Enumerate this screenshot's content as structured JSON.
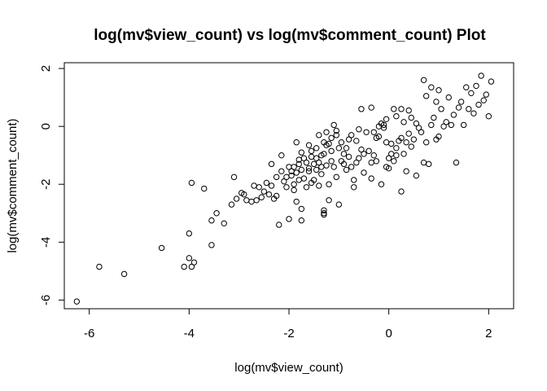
{
  "chart_data": {
    "type": "scatter",
    "title": "log(mv$view_count) vs log(mv$comment_count) Plot",
    "xlabel": "log(mv$view_count)",
    "ylabel": "log(mv$comment_count)",
    "xlim": [
      -6.5,
      2.5
    ],
    "ylim": [
      -6.3,
      2.2
    ],
    "x_ticks": [
      -6,
      -4,
      -2,
      0,
      2
    ],
    "y_ticks": [
      -6,
      -4,
      -2,
      0,
      2
    ],
    "x_tick_labels": [
      "-6",
      "-4",
      "-2",
      "0",
      "2"
    ],
    "y_tick_labels": [
      "-6",
      "-4",
      "-2",
      "0",
      "2"
    ],
    "grid": false,
    "marker": "open-circle",
    "points": [
      [
        -6.25,
        -6.05
      ],
      [
        -5.8,
        -4.85
      ],
      [
        -5.3,
        -5.1
      ],
      [
        -4.55,
        -4.2
      ],
      [
        -4.1,
        -4.85
      ],
      [
        -4.0,
        -4.55
      ],
      [
        -4.0,
        -3.7
      ],
      [
        -3.95,
        -4.85
      ],
      [
        -3.9,
        -4.7
      ],
      [
        -3.95,
        -1.95
      ],
      [
        -3.7,
        -2.15
      ],
      [
        -3.55,
        -4.1
      ],
      [
        -3.55,
        -3.25
      ],
      [
        -3.45,
        -3.0
      ],
      [
        -3.3,
        -3.35
      ],
      [
        -3.15,
        -2.7
      ],
      [
        -3.1,
        -1.75
      ],
      [
        -3.05,
        -2.5
      ],
      [
        -2.9,
        -2.35
      ],
      [
        -2.85,
        -2.55
      ],
      [
        -2.75,
        -2.6
      ],
      [
        -2.65,
        -2.55
      ],
      [
        -2.6,
        -2.1
      ],
      [
        -2.55,
        -2.45
      ],
      [
        -2.45,
        -1.95
      ],
      [
        -2.4,
        -2.35
      ],
      [
        -2.35,
        -1.3
      ],
      [
        -2.3,
        -2.5
      ],
      [
        -2.25,
        -2.4
      ],
      [
        -2.2,
        -3.4
      ],
      [
        -2.15,
        -1.0
      ],
      [
        -2.05,
        -2.1
      ],
      [
        -2.0,
        -1.4
      ],
      [
        -1.95,
        -1.7
      ],
      [
        -1.9,
        -2.0
      ],
      [
        -1.85,
        -0.55
      ],
      [
        -1.85,
        -2.6
      ],
      [
        -1.8,
        -1.85
      ],
      [
        -1.75,
        -3.25
      ],
      [
        -1.75,
        -2.85
      ],
      [
        -1.65,
        -2.1
      ],
      [
        -1.6,
        -1.55
      ],
      [
        -1.55,
        -0.85
      ],
      [
        -1.5,
        -1.85
      ],
      [
        -1.45,
        -1.1
      ],
      [
        -1.4,
        -0.3
      ],
      [
        -1.35,
        -1.65
      ],
      [
        -1.35,
        -1.4
      ],
      [
        -1.3,
        -0.95
      ],
      [
        -1.3,
        -2.9
      ],
      [
        -1.3,
        -3.05
      ],
      [
        -1.3,
        -3.0
      ],
      [
        -1.25,
        -0.65
      ],
      [
        -1.2,
        -2.0
      ],
      [
        -1.2,
        -2.55
      ],
      [
        -1.15,
        -1.2
      ],
      [
        -1.1,
        -1.4
      ],
      [
        -1.05,
        -1.75
      ],
      [
        -1.0,
        -0.75
      ],
      [
        -1.0,
        -2.7
      ],
      [
        -0.95,
        -1.2
      ],
      [
        -0.9,
        -1.3
      ],
      [
        -0.85,
        -1.5
      ],
      [
        -0.8,
        -1.05
      ],
      [
        -0.75,
        -1.4
      ],
      [
        -0.7,
        -2.1
      ],
      [
        -0.7,
        -1.85
      ],
      [
        -0.65,
        -1.25
      ],
      [
        -0.6,
        -1.1
      ],
      [
        -0.55,
        -0.8
      ],
      [
        -0.5,
        -1.6
      ],
      [
        -0.5,
        -0.95
      ],
      [
        -0.45,
        -0.2
      ],
      [
        -0.4,
        -0.85
      ],
      [
        -0.35,
        -1.25
      ],
      [
        -0.35,
        -1.8
      ],
      [
        -0.3,
        -0.2
      ],
      [
        -0.3,
        -1.0
      ],
      [
        -0.25,
        -1.2
      ],
      [
        -0.2,
        -0.35
      ],
      [
        -0.15,
        -2.0
      ],
      [
        -0.1,
        -0.05
      ],
      [
        -0.1,
        0.05
      ],
      [
        -0.05,
        -1.4
      ],
      [
        -0.05,
        -0.55
      ],
      [
        0.0,
        -1.45
      ],
      [
        0.0,
        -1.1
      ],
      [
        0.05,
        -0.6
      ],
      [
        0.05,
        -0.95
      ],
      [
        0.1,
        -1.2
      ],
      [
        0.15,
        -1.0
      ],
      [
        0.15,
        -0.75
      ],
      [
        0.2,
        -0.5
      ],
      [
        0.25,
        -0.4
      ],
      [
        0.25,
        -2.25
      ],
      [
        0.3,
        -0.95
      ],
      [
        0.35,
        -0.55
      ],
      [
        0.35,
        -1.55
      ],
      [
        0.4,
        -0.25
      ],
      [
        0.45,
        -0.7
      ],
      [
        0.5,
        -0.45
      ],
      [
        0.55,
        -1.7
      ],
      [
        0.6,
        -0.05
      ],
      [
        0.65,
        -0.2
      ],
      [
        0.7,
        -1.25
      ],
      [
        0.75,
        -0.55
      ],
      [
        0.8,
        -1.3
      ],
      [
        0.85,
        0.05
      ],
      [
        0.9,
        0.3
      ],
      [
        0.95,
        -0.45
      ],
      [
        1.0,
        -0.35
      ],
      [
        1.05,
        0.6
      ],
      [
        1.1,
        0.0
      ],
      [
        1.15,
        0.15
      ],
      [
        1.2,
        1.0
      ],
      [
        1.25,
        0.05
      ],
      [
        1.3,
        0.4
      ],
      [
        1.35,
        -1.25
      ],
      [
        1.4,
        0.65
      ],
      [
        1.45,
        0.85
      ],
      [
        1.5,
        0.05
      ],
      [
        1.55,
        1.35
      ],
      [
        1.6,
        0.6
      ],
      [
        1.65,
        1.15
      ],
      [
        1.7,
        0.45
      ],
      [
        1.75,
        1.4
      ],
      [
        1.8,
        0.75
      ],
      [
        1.85,
        1.75
      ],
      [
        1.9,
        0.9
      ],
      [
        1.95,
        1.1
      ],
      [
        2.0,
        0.35
      ],
      [
        2.05,
        1.55
      ],
      [
        -0.35,
        0.65
      ],
      [
        -0.55,
        0.6
      ],
      [
        -0.6,
        -0.1
      ],
      [
        -0.65,
        -0.5
      ],
      [
        -0.75,
        -0.3
      ],
      [
        -0.8,
        -0.45
      ],
      [
        -0.85,
        -0.75
      ],
      [
        -0.9,
        -0.95
      ],
      [
        -0.95,
        -0.55
      ],
      [
        -1.05,
        -0.3
      ],
      [
        -1.1,
        0.05
      ],
      [
        -1.15,
        -0.4
      ],
      [
        -1.2,
        -0.6
      ],
      [
        -1.25,
        -0.2
      ],
      [
        -1.3,
        -0.55
      ],
      [
        -1.35,
        -1.0
      ],
      [
        -1.4,
        -1.25
      ],
      [
        -1.45,
        -0.75
      ],
      [
        -1.5,
        -1.3
      ],
      [
        -1.55,
        -1.05
      ],
      [
        -1.6,
        -1.45
      ],
      [
        -1.65,
        -1.25
      ],
      [
        -1.7,
        -1.1
      ],
      [
        -1.75,
        -1.5
      ],
      [
        -1.8,
        -1.3
      ],
      [
        -1.85,
        -1.6
      ],
      [
        -1.9,
        -1.4
      ],
      [
        -1.95,
        -1.55
      ],
      [
        -2.05,
        -1.75
      ],
      [
        -2.1,
        -1.9
      ],
      [
        -2.15,
        -1.55
      ],
      [
        -2.25,
        -1.75
      ],
      [
        -2.35,
        -2.05
      ],
      [
        -2.5,
        -2.25
      ],
      [
        -2.7,
        -2.05
      ],
      [
        -2.95,
        -2.3
      ],
      [
        0.25,
        0.6
      ],
      [
        0.4,
        0.55
      ],
      [
        0.55,
        0.1
      ],
      [
        0.7,
        1.6
      ],
      [
        0.75,
        1.05
      ],
      [
        0.85,
        1.35
      ],
      [
        0.95,
        0.85
      ],
      [
        1.0,
        1.25
      ],
      [
        0.3,
        0.15
      ],
      [
        0.45,
        0.3
      ],
      [
        0.15,
        0.35
      ],
      [
        0.1,
        0.6
      ],
      [
        -0.05,
        0.25
      ],
      [
        -0.15,
        0.1
      ],
      [
        -0.2,
        0.0
      ],
      [
        -0.25,
        -0.4
      ],
      [
        -1.05,
        -0.15
      ],
      [
        -1.15,
        -0.85
      ],
      [
        -1.25,
        -1.35
      ],
      [
        -1.45,
        -1.5
      ],
      [
        -1.6,
        -0.65
      ],
      [
        -1.75,
        -0.9
      ],
      [
        -1.9,
        -2.2
      ],
      [
        -2.0,
        -3.2
      ],
      [
        -1.8,
        -1.15
      ],
      [
        -1.7,
        -1.8
      ],
      [
        -1.55,
        -1.95
      ],
      [
        -1.4,
        -2.05
      ]
    ]
  }
}
